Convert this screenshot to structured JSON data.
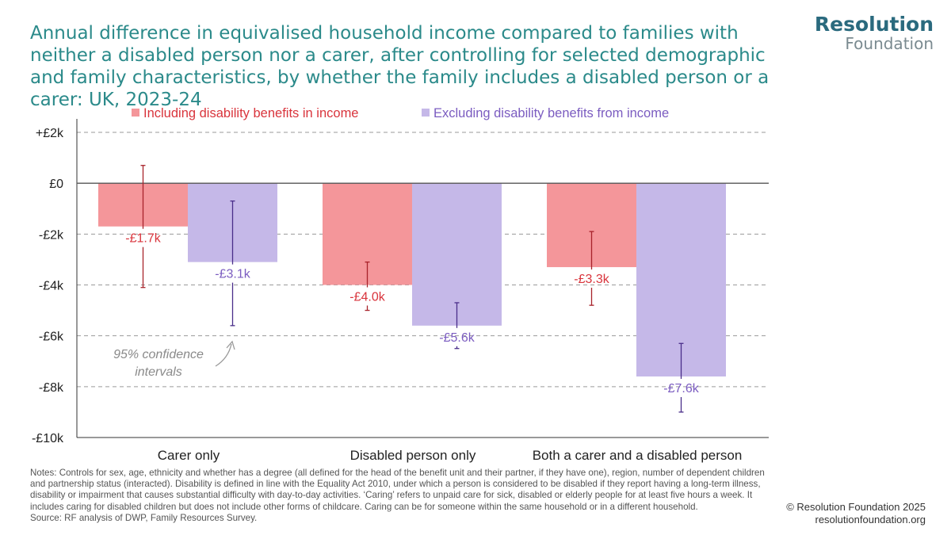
{
  "header": {
    "title": "Annual difference in equivalised household income compared to families with neither a disabled person nor a carer, after controlling for selected demographic and family characteristics, by whether the family includes a disabled person or a carer: UK, 2023-24"
  },
  "logo": {
    "line1": "Resolution",
    "line2": "Foundation"
  },
  "chart_data": {
    "type": "bar",
    "title": "Annual difference in equivalised household income compared to families with neither a disabled person nor a carer, after controlling for selected demographic and family characteristics, by whether the family includes a disabled person or a carer: UK, 2023-24",
    "categories": [
      "Carer only",
      "Disabled person only",
      "Both a carer and a disabled person"
    ],
    "series": [
      {
        "name": "Including disability benefits in income",
        "color": "#f4969a",
        "label_color": "#d9343c",
        "values": [
          -1.7,
          -4.0,
          -3.3
        ],
        "labels": [
          "-£1.7k",
          "-£4.0k",
          "-£3.3k"
        ],
        "ci_low": [
          -4.1,
          -5.0,
          -4.8
        ],
        "ci_high": [
          0.7,
          -3.1,
          -1.9
        ]
      },
      {
        "name": "Excluding disability benefits from income",
        "color": "#c5b8e8",
        "label_color": "#7b5cc0",
        "values": [
          -3.1,
          -5.6,
          -7.6
        ],
        "labels": [
          "-£3.1k",
          "-£5.6k",
          "-£7.6k"
        ],
        "ci_low": [
          -5.6,
          -6.5,
          -9.0
        ],
        "ci_high": [
          -0.7,
          -4.7,
          -6.3
        ]
      }
    ],
    "ylim": [
      -10,
      2
    ],
    "yticks": [
      2,
      0,
      -2,
      -4,
      -6,
      -8,
      -10
    ],
    "ytick_labels": [
      "+£2k",
      "£0",
      "-£2k",
      "-£4k",
      "-£6k",
      "-£8k",
      "-£10k"
    ],
    "ylabel": "",
    "xlabel": "",
    "grid": "dashed-horizontal",
    "legend_position": "top",
    "annotation": {
      "text": "95% confidence intervals",
      "line1": "95% confidence",
      "line2": "intervals"
    }
  },
  "notes": {
    "text": "Notes: Controls for sex, age, ethnicity and whether has a degree (all defined for the head of the benefit unit and their partner, if they have one), region, number of dependent children and partnership status (interacted). Disability is defined in line with the Equality Act 2010, under which a person is considered to be disabled if they report having a long-term illness, disability or impairment that causes substantial difficulty with day-to-day activities. ‘Caring’ refers to unpaid care for sick, disabled or elderly people for at least five hours a week. It includes caring for disabled children but does not include other forms of childcare. Caring can be for someone within the same household or in a different household.",
    "source": "Source: RF analysis of DWP, Family Resources Survey."
  },
  "footer": {
    "copyright": "© Resolution Foundation 2025",
    "url": "resolutionfoundation.org"
  }
}
